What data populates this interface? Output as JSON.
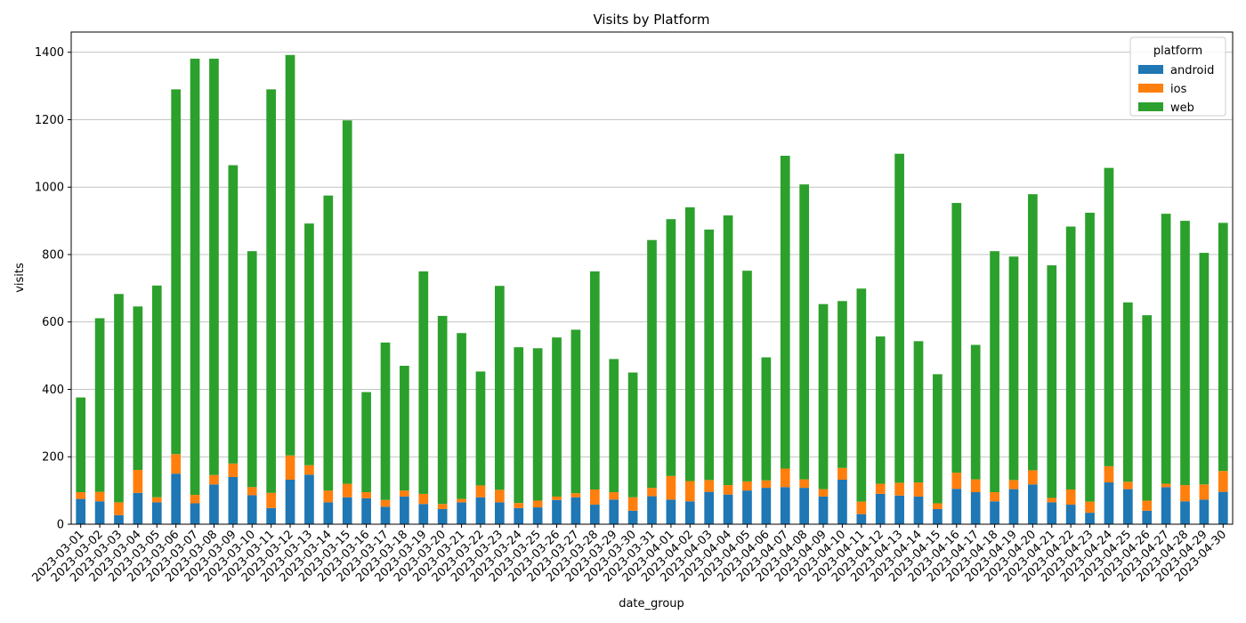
{
  "chart_data": {
    "type": "bar",
    "stacked": true,
    "title": "Visits by Platform",
    "xlabel": "date_group",
    "ylabel": "visits",
    "ylim": [
      0,
      1460
    ],
    "yticks": [
      0,
      200,
      400,
      600,
      800,
      1000,
      1200,
      1400
    ],
    "grid": "y",
    "legend": {
      "title": "platform",
      "position": "top-right"
    },
    "categories": [
      "2023-03-01",
      "2023-03-02",
      "2023-03-03",
      "2023-03-04",
      "2023-03-05",
      "2023-03-06",
      "2023-03-07",
      "2023-03-08",
      "2023-03-09",
      "2023-03-10",
      "2023-03-11",
      "2023-03-12",
      "2023-03-13",
      "2023-03-14",
      "2023-03-15",
      "2023-03-16",
      "2023-03-17",
      "2023-03-18",
      "2023-03-19",
      "2023-03-20",
      "2023-03-21",
      "2023-03-22",
      "2023-03-23",
      "2023-03-24",
      "2023-03-25",
      "2023-03-26",
      "2023-03-27",
      "2023-03-28",
      "2023-03-29",
      "2023-03-30",
      "2023-03-31",
      "2023-04-01",
      "2023-04-02",
      "2023-04-03",
      "2023-04-04",
      "2023-04-05",
      "2023-04-06",
      "2023-04-07",
      "2023-04-08",
      "2023-04-09",
      "2023-04-10",
      "2023-04-11",
      "2023-04-12",
      "2023-04-13",
      "2023-04-14",
      "2023-04-15",
      "2023-04-16",
      "2023-04-17",
      "2023-04-18",
      "2023-04-19",
      "2023-04-20",
      "2023-04-21",
      "2023-04-22",
      "2023-04-23",
      "2023-04-24",
      "2023-04-25",
      "2023-04-26",
      "2023-04-27",
      "2023-04-28",
      "2023-04-29",
      "2023-04-30"
    ],
    "series": [
      {
        "name": "android",
        "color": "#1f77b4",
        "values": [
          75,
          68,
          27,
          93,
          65,
          150,
          62,
          118,
          140,
          86,
          48,
          132,
          147,
          65,
          80,
          77,
          52,
          82,
          60,
          45,
          65,
          80,
          65,
          48,
          50,
          72,
          80,
          58,
          73,
          40,
          83,
          73,
          68,
          96,
          88,
          100,
          108,
          110,
          108,
          82,
          132,
          30,
          90,
          85,
          82,
          45,
          105,
          95,
          68,
          104,
          118,
          65,
          58,
          34,
          124,
          104,
          40,
          110,
          68,
          73,
          96
        ]
      },
      {
        "name": "ios",
        "color": "#ff7f0e",
        "values": [
          20,
          28,
          38,
          68,
          15,
          58,
          25,
          28,
          40,
          24,
          45,
          72,
          28,
          35,
          40,
          18,
          20,
          18,
          30,
          15,
          10,
          35,
          37,
          15,
          20,
          10,
          12,
          45,
          22,
          40,
          25,
          70,
          60,
          35,
          28,
          27,
          22,
          55,
          25,
          22,
          35,
          37,
          30,
          38,
          42,
          17,
          48,
          38,
          27,
          27,
          42,
          13,
          45,
          33,
          48,
          22,
          30,
          10,
          48,
          45,
          62
        ]
      },
      {
        "name": "web",
        "color": "#2ca02c",
        "values": [
          281,
          515,
          618,
          485,
          628,
          1082,
          1294,
          1235,
          885,
          700,
          1197,
          1188,
          717,
          875,
          1078,
          297,
          467,
          370,
          660,
          558,
          492,
          338,
          605,
          462,
          452,
          472,
          485,
          647,
          395,
          370,
          735,
          762,
          812,
          743,
          800,
          625,
          365,
          928,
          875,
          549,
          495,
          632,
          437,
          976,
          419,
          383,
          800,
          399,
          715,
          663,
          819,
          690,
          780,
          857,
          885,
          532,
          550,
          801,
          784,
          687,
          736
        ]
      }
    ]
  }
}
